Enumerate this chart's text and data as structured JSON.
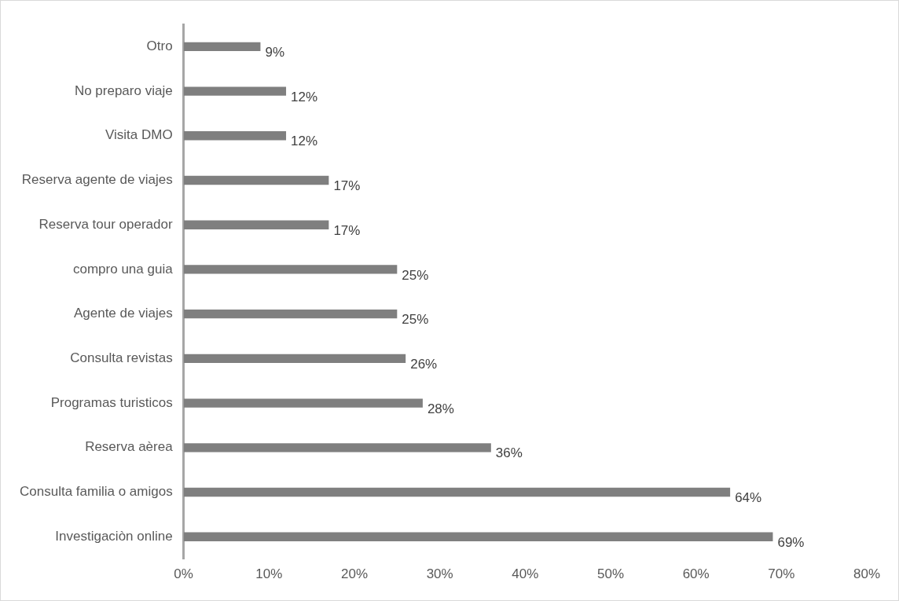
{
  "chart_data": {
    "type": "bar",
    "orientation": "horizontal",
    "categories": [
      "Otro",
      "No preparo viaje",
      "Visita DMO",
      "Reserva agente de viajes",
      "Reserva tour operador",
      "compro una guia",
      "Agente de viajes",
      "Consulta revistas",
      "Programas turisticos",
      "Reserva aèrea",
      "Consulta familia o amigos",
      "Investigaciòn online"
    ],
    "values": [
      9,
      12,
      12,
      17,
      17,
      25,
      25,
      26,
      28,
      36,
      64,
      69
    ],
    "value_labels": [
      "9%",
      "12%",
      "12%",
      "17%",
      "17%",
      "25%",
      "25%",
      "26%",
      "28%",
      "36%",
      "64%",
      "69%"
    ],
    "color": "#7f7f7f",
    "xlim": [
      0,
      80
    ],
    "xticks": [
      {
        "value": 0,
        "label": "0%"
      },
      {
        "value": 10,
        "label": "10%"
      },
      {
        "value": 20,
        "label": "20%"
      },
      {
        "value": 30,
        "label": "30%"
      },
      {
        "value": 40,
        "label": "40%"
      },
      {
        "value": 50,
        "label": "50%"
      },
      {
        "value": 60,
        "label": "60%"
      },
      {
        "value": 70,
        "label": "70%"
      },
      {
        "value": 80,
        "label": "80%"
      }
    ],
    "grid": false,
    "legend": false
  }
}
